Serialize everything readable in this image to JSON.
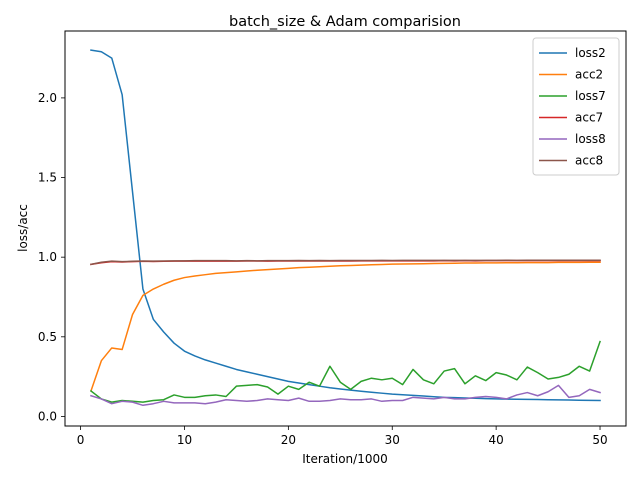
{
  "chart_data": {
    "type": "line",
    "title": "batch_size & Adam comparision",
    "xlabel": "Iteration/1000",
    "ylabel": "loss/acc",
    "xlim": [
      -1.5,
      52.5
    ],
    "ylim": [
      -0.06,
      2.42
    ],
    "xticks": [
      0,
      10,
      20,
      30,
      40,
      50
    ],
    "xtick_labels": [
      "0",
      "10",
      "20",
      "30",
      "40",
      "50"
    ],
    "yticks": [
      0.0,
      0.5,
      1.0,
      1.5,
      2.0
    ],
    "ytick_labels": [
      "0.0",
      "0.5",
      "1.0",
      "1.5",
      "2.0"
    ],
    "grid": false,
    "legend_position": "top-right",
    "x": [
      1,
      2,
      3,
      4,
      5,
      6,
      7,
      8,
      9,
      10,
      11,
      12,
      13,
      14,
      15,
      16,
      17,
      18,
      19,
      20,
      21,
      22,
      23,
      24,
      25,
      26,
      27,
      28,
      29,
      30,
      31,
      32,
      33,
      34,
      35,
      36,
      37,
      38,
      39,
      40,
      41,
      42,
      43,
      44,
      45,
      46,
      47,
      48,
      49,
      50
    ],
    "series": [
      {
        "name": "loss2",
        "color": "#1f77b4",
        "values": [
          2.3,
          2.29,
          2.25,
          2.02,
          1.41,
          0.8,
          0.61,
          0.53,
          0.46,
          0.41,
          0.38,
          0.355,
          0.335,
          0.315,
          0.295,
          0.28,
          0.265,
          0.25,
          0.235,
          0.22,
          0.21,
          0.2,
          0.19,
          0.18,
          0.172,
          0.165,
          0.158,
          0.152,
          0.146,
          0.14,
          0.136,
          0.132,
          0.128,
          0.124,
          0.12,
          0.118,
          0.116,
          0.114,
          0.112,
          0.11,
          0.109,
          0.108,
          0.107,
          0.106,
          0.105,
          0.104,
          0.103,
          0.102,
          0.101,
          0.1
        ]
      },
      {
        "name": "acc2",
        "color": "#ff7f0e",
        "values": [
          0.16,
          0.35,
          0.43,
          0.42,
          0.64,
          0.76,
          0.8,
          0.83,
          0.855,
          0.872,
          0.882,
          0.89,
          0.898,
          0.903,
          0.908,
          0.913,
          0.918,
          0.922,
          0.926,
          0.93,
          0.934,
          0.937,
          0.94,
          0.943,
          0.946,
          0.948,
          0.95,
          0.952,
          0.954,
          0.956,
          0.957,
          0.958,
          0.959,
          0.96,
          0.961,
          0.962,
          0.963,
          0.963,
          0.964,
          0.964,
          0.965,
          0.965,
          0.966,
          0.966,
          0.966,
          0.967,
          0.967,
          0.967,
          0.968,
          0.968
        ]
      },
      {
        "name": "loss7",
        "color": "#2ca02c",
        "values": [
          0.16,
          0.11,
          0.09,
          0.1,
          0.095,
          0.09,
          0.1,
          0.105,
          0.135,
          0.12,
          0.12,
          0.13,
          0.135,
          0.125,
          0.19,
          0.195,
          0.2,
          0.185,
          0.14,
          0.19,
          0.17,
          0.215,
          0.19,
          0.315,
          0.215,
          0.17,
          0.22,
          0.24,
          0.23,
          0.24,
          0.2,
          0.295,
          0.23,
          0.205,
          0.285,
          0.3,
          0.205,
          0.255,
          0.225,
          0.275,
          0.26,
          0.23,
          0.31,
          0.275,
          0.235,
          0.245,
          0.265,
          0.315,
          0.285,
          0.47
        ]
      },
      {
        "name": "acc7",
        "color": "#d62728",
        "values": [
          0.955,
          0.965,
          0.972,
          0.97,
          0.972,
          0.974,
          0.973,
          0.974,
          0.975,
          0.976,
          0.975,
          0.976,
          0.975,
          0.976,
          0.975,
          0.976,
          0.976,
          0.975,
          0.976,
          0.976,
          0.976,
          0.976,
          0.977,
          0.976,
          0.977,
          0.976,
          0.977,
          0.977,
          0.977,
          0.977,
          0.977,
          0.977,
          0.977,
          0.977,
          0.978,
          0.977,
          0.978,
          0.977,
          0.978,
          0.978,
          0.978,
          0.978,
          0.978,
          0.978,
          0.978,
          0.978,
          0.978,
          0.978,
          0.978,
          0.978
        ]
      },
      {
        "name": "loss8",
        "color": "#9467bd",
        "values": [
          0.13,
          0.11,
          0.08,
          0.095,
          0.09,
          0.07,
          0.08,
          0.095,
          0.085,
          0.085,
          0.085,
          0.08,
          0.09,
          0.105,
          0.1,
          0.095,
          0.1,
          0.11,
          0.105,
          0.1,
          0.115,
          0.095,
          0.095,
          0.1,
          0.11,
          0.105,
          0.105,
          0.11,
          0.095,
          0.1,
          0.1,
          0.12,
          0.115,
          0.11,
          0.12,
          0.11,
          0.11,
          0.12,
          0.125,
          0.12,
          0.11,
          0.135,
          0.15,
          0.13,
          0.155,
          0.195,
          0.12,
          0.13,
          0.17,
          0.15
        ]
      },
      {
        "name": "acc8",
        "color": "#8c564b",
        "values": [
          0.955,
          0.968,
          0.975,
          0.972,
          0.974,
          0.976,
          0.975,
          0.976,
          0.977,
          0.977,
          0.978,
          0.978,
          0.978,
          0.978,
          0.977,
          0.978,
          0.977,
          0.978,
          0.978,
          0.978,
          0.979,
          0.978,
          0.979,
          0.978,
          0.979,
          0.979,
          0.979,
          0.979,
          0.98,
          0.979,
          0.98,
          0.98,
          0.98,
          0.98,
          0.98,
          0.98,
          0.98,
          0.98,
          0.98,
          0.98,
          0.981,
          0.98,
          0.981,
          0.981,
          0.981,
          0.981,
          0.981,
          0.981,
          0.981,
          0.981
        ]
      }
    ]
  }
}
